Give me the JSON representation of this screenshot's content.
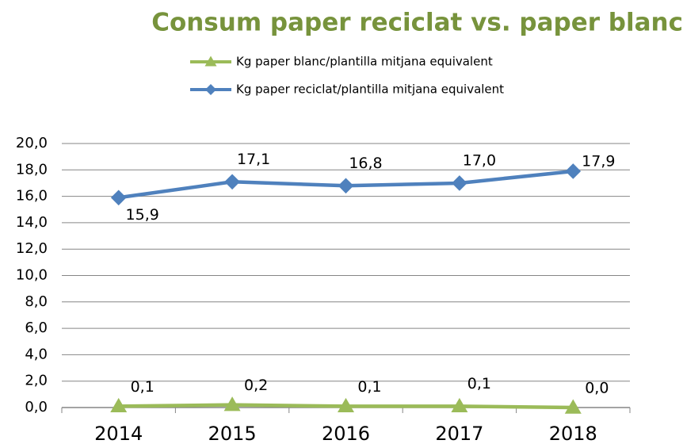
{
  "chart_data": {
    "type": "line",
    "title": "Consum paper reciclat vs. paper blanc",
    "categories": [
      "2014",
      "2015",
      "2016",
      "2017",
      "2018"
    ],
    "series": [
      {
        "name": "Kg paper blanc/plantilla mitjana equivalent",
        "color": "#9bbb59",
        "marker": "triangle",
        "values": [
          0.1,
          0.2,
          0.1,
          0.1,
          0.0
        ],
        "value_labels": [
          "0,1",
          "0,2",
          "0,1",
          "0,1",
          "0,0"
        ]
      },
      {
        "name": "Kg paper reciclat/plantilla mitjana equivalent",
        "color": "#4f81bd",
        "marker": "diamond",
        "values": [
          15.9,
          17.1,
          16.8,
          17.0,
          17.9
        ],
        "value_labels": [
          "15,9",
          "17,1",
          "16,8",
          "17,0",
          "17,9"
        ]
      }
    ],
    "ylim": [
      0,
      20
    ],
    "yticks": [
      {
        "value": 0,
        "label": "0,0"
      },
      {
        "value": 2,
        "label": "2,0"
      },
      {
        "value": 4,
        "label": "4,0"
      },
      {
        "value": 6,
        "label": "6,0"
      },
      {
        "value": 8,
        "label": "8,0"
      },
      {
        "value": 10,
        "label": "10,0"
      },
      {
        "value": 12,
        "label": "12,0"
      },
      {
        "value": 14,
        "label": "14,0"
      },
      {
        "value": 16,
        "label": "16,0"
      },
      {
        "value": 18,
        "label": "18,0"
      },
      {
        "value": 20,
        "label": "20,0"
      }
    ],
    "grid": true
  }
}
